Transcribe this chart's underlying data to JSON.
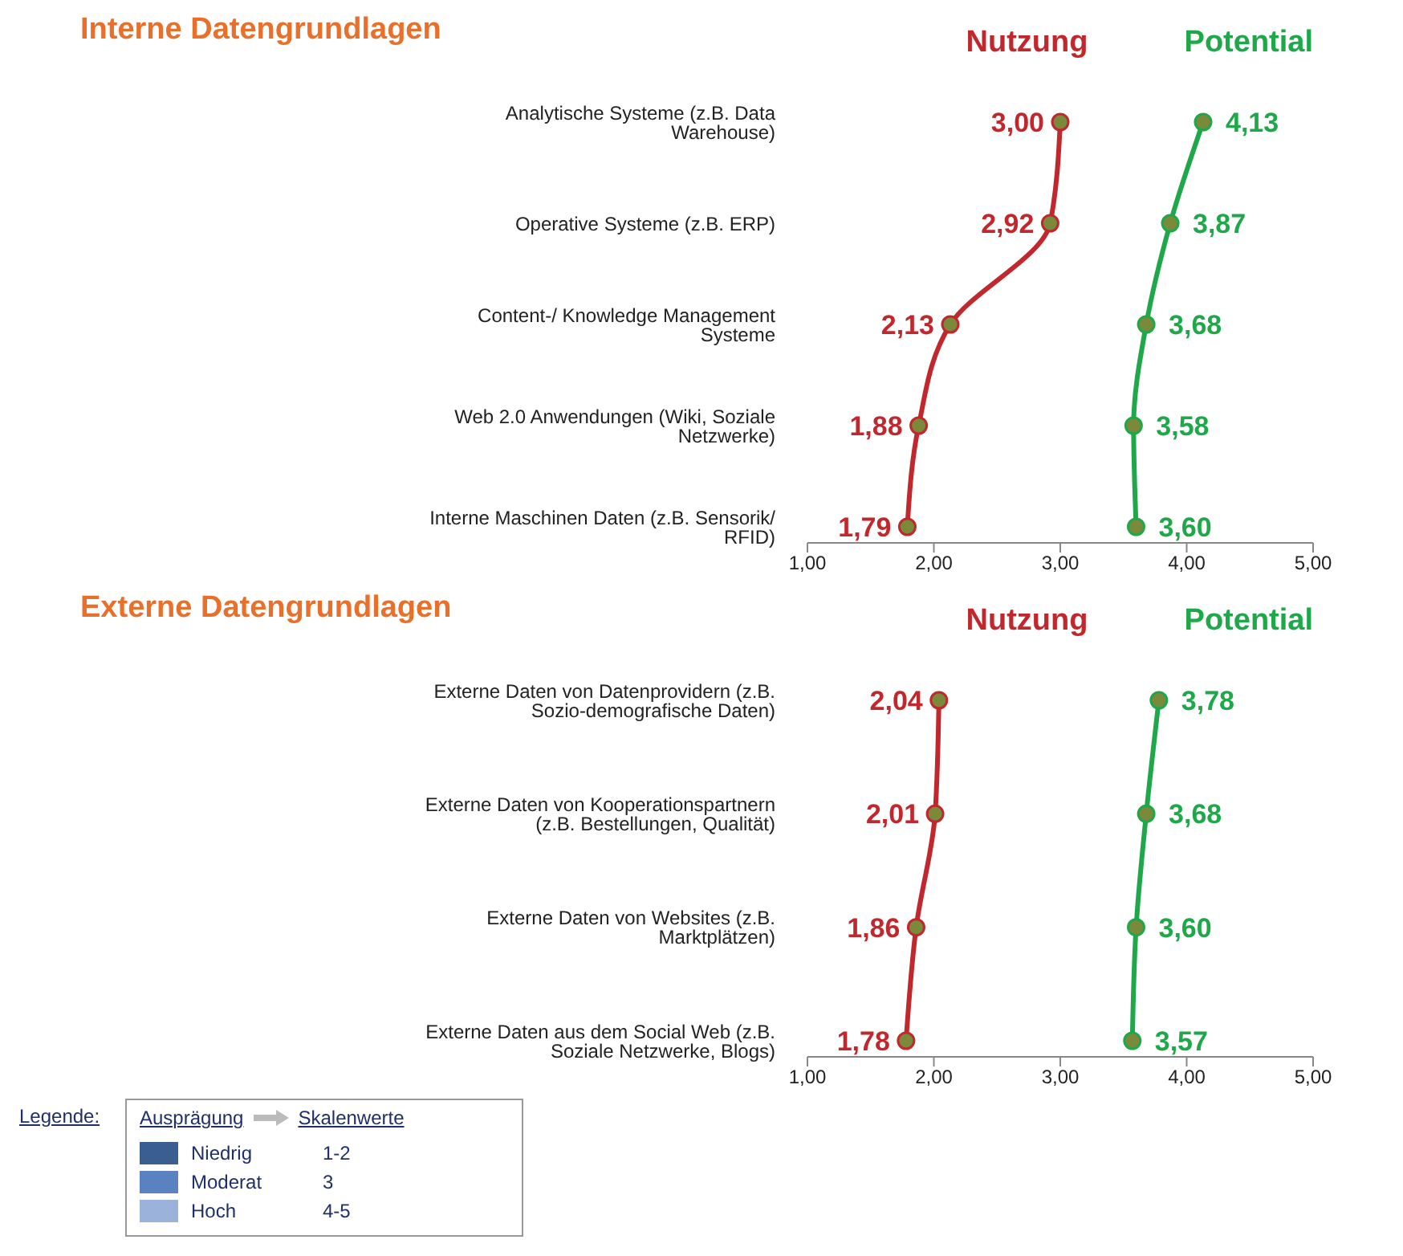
{
  "chart_data": [
    {
      "type": "line",
      "orientation": "horizontal",
      "title": "Interne Datengrundlagen",
      "categories": [
        "Analytische Systeme (z.B. Data Warehouse)",
        "Operative Systeme (z.B. ERP)",
        "Content-/ Knowledge Management Systeme",
        "Web 2.0 Anwendungen (Wiki, Soziale Netzwerke)",
        "Interne Maschinen Daten (z.B. Sensorik/ RFID)"
      ],
      "series": [
        {
          "name": "Nutzung",
          "color": "#c0282d",
          "values": [
            3.0,
            2.92,
            2.13,
            1.88,
            1.79
          ],
          "value_labels": [
            "3,00",
            "2,92",
            "2,13",
            "1,88",
            "1,79"
          ]
        },
        {
          "name": "Potential",
          "color": "#1fa84a",
          "values": [
            4.13,
            3.87,
            3.68,
            3.58,
            3.6
          ],
          "value_labels": [
            "4,13",
            "3,87",
            "3,68",
            "3,58",
            "3,60"
          ]
        }
      ],
      "xlim": [
        1,
        5
      ],
      "xticks": [
        {
          "value": 1,
          "label": "1,00"
        },
        {
          "value": 2,
          "label": "2,00"
        },
        {
          "value": 3,
          "label": "3,00"
        },
        {
          "value": 4,
          "label": "4,00"
        },
        {
          "value": 5,
          "label": "5,00"
        }
      ],
      "marker": "circle",
      "legend": "top right",
      "grid": false
    },
    {
      "type": "line",
      "orientation": "horizontal",
      "title": "Externe Datengrundlagen",
      "categories": [
        "Externe Daten von Datenprovidern (z.B. Sozio-demografische Daten)",
        "Externe Daten von Kooperationspartnern (z.B. Bestellungen, Qualität)",
        "Externe Daten von Websites (z.B. Marktplätzen)",
        "Externe Daten aus dem Social Web (z.B. Soziale Netzwerke, Blogs)"
      ],
      "series": [
        {
          "name": "Nutzung",
          "color": "#c0282d",
          "values": [
            2.04,
            2.01,
            1.86,
            1.78
          ],
          "value_labels": [
            "2,04",
            "2,01",
            "1,86",
            "1,78"
          ]
        },
        {
          "name": "Potential",
          "color": "#1fa84a",
          "values": [
            3.78,
            3.68,
            3.6,
            3.57
          ],
          "value_labels": [
            "3,78",
            "3,68",
            "3,60",
            "3,57"
          ]
        }
      ],
      "xlim": [
        1,
        5
      ],
      "xticks": [
        {
          "value": 1,
          "label": "1,00"
        },
        {
          "value": 2,
          "label": "2,00"
        },
        {
          "value": 3,
          "label": "3,00"
        },
        {
          "value": 4,
          "label": "4,00"
        },
        {
          "value": 5,
          "label": "5,00"
        }
      ],
      "marker": "circle",
      "legend": "top right",
      "grid": false,
      "annotations": [
        "Legende:",
        "Ausprägung",
        "Skalenwerte",
        "Niedrig",
        "1-2",
        "Moderat",
        "3",
        "Hoch",
        "4-5"
      ]
    }
  ]
}
